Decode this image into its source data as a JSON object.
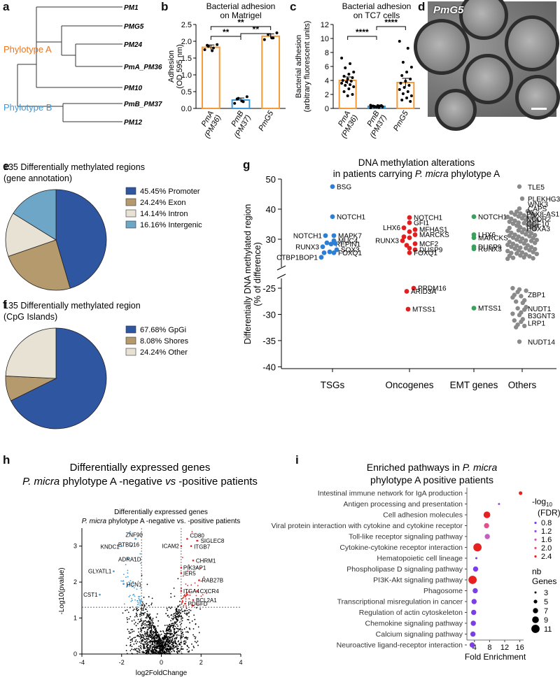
{
  "panel_labels": {
    "a": "a",
    "b": "b",
    "c": "c",
    "d": "d",
    "e": "e",
    "f": "f",
    "g": "g",
    "h": "h",
    "i": "i"
  },
  "phylo": {
    "leaves": [
      "PM1",
      "PMG5",
      "PM24",
      "PmA_PM36",
      "PM10",
      "PmB_PM37",
      "PM12"
    ],
    "clade_a": "Phylotype A",
    "clade_b": "Phylotype B",
    "color_a": "#e87722",
    "color_b": "#3a9ad9"
  },
  "micro": {
    "title": "PmG5"
  },
  "chart_data": [
    {
      "id": "b",
      "type": "bar",
      "title": "Bacterial adhesion\non Matrigel",
      "ylabel": "Adhesion\n(OD 595 nm)",
      "ylim": [
        0,
        2.5
      ],
      "yticks": [
        "0.0",
        "0.5",
        "1.0",
        "1.5",
        "2.0",
        "2.5"
      ],
      "categories": [
        "PmA\n(PM36)",
        "PmB\n(PM37)",
        "PmG5"
      ],
      "values": [
        1.82,
        0.25,
        2.15
      ],
      "errors": [
        0.07,
        0.06,
        0.07
      ],
      "points": [
        [
          1.75,
          1.8,
          1.85,
          1.9,
          1.72,
          1.88
        ],
        [
          0.15,
          0.2,
          0.3,
          0.35,
          0.22,
          0.28
        ],
        [
          2.05,
          2.1,
          2.2,
          2.25,
          2.1
        ]
      ],
      "bar_colors": [
        "#f39b3a",
        "#3a9ad9",
        "#f39b3a"
      ],
      "significance": [
        {
          "from": 0,
          "to": 1,
          "label": "**"
        },
        {
          "from": 0,
          "to": 2,
          "label": "**"
        },
        {
          "from": 1,
          "to": 2,
          "label": "**"
        }
      ]
    },
    {
      "id": "c",
      "type": "bar",
      "title": "Bacterial adhesion\non TC7 cells",
      "ylabel": "Bacterial adhesion\n(arbitrary fluorescent units)",
      "ylim": [
        0,
        12
      ],
      "yticks": [
        "0",
        "2",
        "4",
        "6",
        "8",
        "10",
        "12"
      ],
      "categories": [
        "PmA\n(PM36)",
        "PmB\n(PM37)",
        "PmG5"
      ],
      "values": [
        4.0,
        0.3,
        3.7
      ],
      "errors": [
        0.5,
        0.05,
        0.6
      ],
      "points": [
        [
          7.2,
          6.4,
          5.8,
          5.2,
          4.9,
          4.6,
          4.4,
          4.2,
          4.0,
          3.9,
          3.8,
          3.6,
          3.4,
          3.3,
          3.1,
          2.8,
          2.4,
          2.0,
          1.8
        ],
        [
          0.1,
          0.15,
          0.2,
          0.25,
          0.3,
          0.35,
          0.4,
          0.2,
          0.3,
          0.35,
          0.25,
          0.45,
          0.15,
          0.3,
          0.2,
          0.4
        ],
        [
          9.6,
          8.6,
          6.6,
          5.9,
          5.2,
          4.7,
          4.2,
          3.9,
          3.6,
          3.3,
          3.0,
          2.7,
          2.4,
          2.1,
          1.8,
          1.5,
          1.2,
          1.0
        ]
      ],
      "bar_colors": [
        "#f39b3a",
        "#3a9ad9",
        "#f39b3a"
      ],
      "significance": [
        {
          "from": 0,
          "to": 1,
          "label": "****"
        },
        {
          "from": 1,
          "to": 2,
          "label": "****"
        }
      ]
    },
    {
      "id": "e",
      "type": "pie",
      "title": "135 Differentially methylated regions\n(gene annotation)",
      "labels": [
        "Promoter",
        "Exon",
        "Intron",
        "Intergenic"
      ],
      "pct_labels": [
        "45.45%",
        "24.24%",
        "14.14%",
        "16.16%"
      ],
      "values": [
        45.45,
        24.24,
        14.14,
        16.16
      ],
      "colors": [
        "#2f56a0",
        "#b59a6e",
        "#e8e2d4",
        "#6ea6c8"
      ]
    },
    {
      "id": "f",
      "type": "pie",
      "title": "135 Differentially methylated region\n(CpG Islands)",
      "labels": [
        "GpGi",
        "Shores",
        "Other"
      ],
      "pct_labels": [
        "67.68%",
        "8.08%",
        "24.24%"
      ],
      "values": [
        67.68,
        8.08,
        24.24
      ],
      "colors": [
        "#2f56a0",
        "#b59a6e",
        "#e8e2d4"
      ]
    },
    {
      "id": "g",
      "type": "scatter",
      "title_line1": "DNA methylation alterations",
      "title_line2": "in patients carrying ",
      "title_italic": "P. micra",
      "title_line2_end": " phylotype A",
      "ylabel": "Differentially DNA methylated region\n(% of difference)",
      "yticks_top": [
        "50",
        "40",
        "30"
      ],
      "yticks_bottom": [
        "-25",
        "-30",
        "-35",
        "-40"
      ],
      "categories": [
        "TSGs",
        "Oncogenes",
        "EMT genes",
        "Others"
      ],
      "category_colors": [
        "#2d7fd4",
        "#e02020",
        "#3aa05e",
        "#8a8a8a"
      ],
      "points": [
        {
          "cat": 0,
          "x": 0.0,
          "y": 47.5,
          "label": "BSG"
        },
        {
          "cat": 0,
          "x": 0.0,
          "y": 37.5,
          "label": "NOTCH1"
        },
        {
          "cat": 0,
          "x": -0.25,
          "y": 31.2,
          "label": "NOTCH1"
        },
        {
          "cat": 0,
          "x": 0.05,
          "y": 31.2,
          "label": "MAPK7"
        },
        {
          "cat": 0,
          "x": 0.05,
          "y": 29.5,
          "label": "MUC4"
        },
        {
          "cat": 0,
          "x": -0.2,
          "y": 28.8,
          "label": ""
        },
        {
          "cat": 0,
          "x": -0.05,
          "y": 28.4,
          "label": "REPIN1"
        },
        {
          "cat": 0,
          "x": 0.1,
          "y": 28.6,
          "label": ""
        },
        {
          "cat": 0,
          "x": -0.35,
          "y": 27.5,
          "label": "RUNX3"
        },
        {
          "cat": 0,
          "x": 0.15,
          "y": 26.5,
          "label": "SOX3"
        },
        {
          "cat": 0,
          "x": -0.3,
          "y": 25.5,
          "label": ""
        },
        {
          "cat": 0,
          "x": -0.1,
          "y": 25.8,
          "label": ""
        },
        {
          "cat": 0,
          "x": 0.05,
          "y": 25.5,
          "label": "FOXQ1"
        },
        {
          "cat": 0,
          "x": -0.4,
          "y": 24.0,
          "label": "CTBP1BOP1"
        },
        {
          "cat": 1,
          "x": 0.0,
          "y": 37.2,
          "label": "NOTCH1"
        },
        {
          "cat": 1,
          "x": 0.0,
          "y": 35.5,
          "label": "GFI1"
        },
        {
          "cat": 1,
          "x": -0.2,
          "y": 33.8,
          "label": "LHX6"
        },
        {
          "cat": 1,
          "x": 0.2,
          "y": 33.2,
          "label": "MFHAS1"
        },
        {
          "cat": 1,
          "x": 0.0,
          "y": 32.5,
          "label": ""
        },
        {
          "cat": 1,
          "x": 0.2,
          "y": 31.5,
          "label": "MARCKS"
        },
        {
          "cat": 1,
          "x": -0.2,
          "y": 30.8,
          "label": ""
        },
        {
          "cat": 1,
          "x": 0.0,
          "y": 30.5,
          "label": ""
        },
        {
          "cat": 1,
          "x": -0.25,
          "y": 29.5,
          "label": "RUNX3"
        },
        {
          "cat": 1,
          "x": 0.2,
          "y": 28.5,
          "label": "MCF2"
        },
        {
          "cat": 1,
          "x": -0.1,
          "y": 28.0,
          "label": ""
        },
        {
          "cat": 1,
          "x": 0.0,
          "y": 27.0,
          "label": ""
        },
        {
          "cat": 1,
          "x": 0.2,
          "y": 26.5,
          "label": "DUSP9"
        },
        {
          "cat": 1,
          "x": 0.0,
          "y": 25.5,
          "label": "FOXQ1"
        },
        {
          "cat": 1,
          "x": 0.15,
          "y": -25.0,
          "label": "PRDM16"
        },
        {
          "cat": 1,
          "x": -0.1,
          "y": -25.6,
          "label": "ARID3A"
        },
        {
          "cat": 1,
          "x": -0.05,
          "y": -29.0,
          "label": "MTSS1"
        },
        {
          "cat": 2,
          "x": 0.0,
          "y": 37.5,
          "label": "NOTCH1"
        },
        {
          "cat": 2,
          "x": 0.0,
          "y": 31.5,
          "label": "LHX6"
        },
        {
          "cat": 2,
          "x": 0.0,
          "y": 30.5,
          "label": "MARCKS"
        },
        {
          "cat": 2,
          "x": 0.0,
          "y": 27.5,
          "label": "DUSP9"
        },
        {
          "cat": 2,
          "x": 0.0,
          "y": 26.8,
          "label": "RUNX3"
        },
        {
          "cat": 2,
          "x": 0.0,
          "y": -28.8,
          "label": "MTSS1"
        }
      ],
      "others_labels": [
        "TLE5",
        "PLEKHG3",
        "WNK3",
        "CAPS",
        "PAX8-AS1",
        "NCOR2",
        "GDF10",
        "HOXA3",
        "ZBP1",
        "NUDT1",
        "B3GNT3",
        "LRP1",
        "NUDT14"
      ],
      "others_label_y": [
        47.5,
        43.5,
        41.8,
        40.2,
        38.5,
        36.9,
        35.2,
        33.6,
        -26.2,
        -28.9,
        -30.2,
        -31.6,
        -35.2
      ]
    },
    {
      "id": "h",
      "type": "scatter",
      "title_line1": "Differentially expressed genes",
      "title_italic": "P. micra",
      "title_line2_end": " phylotype A -negative ",
      "title_vs": "vs",
      "title_line2_tail": " -positive patients",
      "inner_title_1": "Differentially expressed genes",
      "inner_title_2_italic": "P. micra",
      "inner_title_2_end": " phylotype A -negative vs. -positive patients",
      "xlabel": "log2FoldChange",
      "ylabel": "-Log10(pvalue)",
      "xlim": [
        -4,
        4
      ],
      "ylim": [
        0,
        3.5
      ],
      "xticks": [
        "-4",
        "-2",
        "0",
        "2",
        "4"
      ],
      "yticks": [
        "0",
        "1",
        "2",
        "3"
      ],
      "thresholds": {
        "fc": 1,
        "p": 1.3
      },
      "colors": {
        "down": "#3a9ad9",
        "up": "#e02020",
        "ns": "#000000"
      },
      "genes": [
        {
          "x": -1.3,
          "y": 3.2,
          "label": "ZNF90"
        },
        {
          "x": -1.5,
          "y": 3.0,
          "label": "BTBD16"
        },
        {
          "x": -2.0,
          "y": 3.0,
          "label": "KNDC1"
        },
        {
          "x": -1.7,
          "y": 2.65,
          "label": "ADRA1D"
        },
        {
          "x": -2.4,
          "y": 2.3,
          "label": "GLYATL1"
        },
        {
          "x": -1.9,
          "y": 1.95,
          "label": "HCN1"
        },
        {
          "x": -3.1,
          "y": 1.65,
          "label": "CST1"
        },
        {
          "x": 1.3,
          "y": 3.2,
          "label": "CD80"
        },
        {
          "x": 1.8,
          "y": 3.15,
          "label": "SIGLEC8"
        },
        {
          "x": 1.0,
          "y": 3.0,
          "label": "ICAM2"
        },
        {
          "x": 1.5,
          "y": 3.0,
          "label": "ITGB7"
        },
        {
          "x": 1.6,
          "y": 2.6,
          "label": "CHRM1"
        },
        {
          "x": 1.0,
          "y": 2.4,
          "label": "PIK3AP1"
        },
        {
          "x": 1.0,
          "y": 2.25,
          "label": "IER5"
        },
        {
          "x": 1.9,
          "y": 2.05,
          "label": "RAB27B"
        },
        {
          "x": 1.0,
          "y": 1.75,
          "label": "ITGA4"
        },
        {
          "x": 1.8,
          "y": 1.75,
          "label": "CXCR4"
        },
        {
          "x": 1.6,
          "y": 1.5,
          "label": "BCL2A1"
        },
        {
          "x": 1.2,
          "y": 1.4,
          "label": "PDGFD"
        }
      ]
    },
    {
      "id": "i",
      "type": "scatter",
      "title_line1_a": "Enriched pathways in ",
      "title_line1_italic": "P. micra",
      "title_line2": "phylotype A positive patients",
      "xlabel": "Fold Enrichment",
      "xticks": [
        "4",
        "8",
        "12",
        "16"
      ],
      "xlim": [
        2,
        17
      ],
      "pathways": [
        {
          "name": "Intestinal immune network for IgA production",
          "fe": 16.2,
          "fdr": 2.4,
          "genes": 5
        },
        {
          "name": "Antigen processing and presentation",
          "fe": 10.5,
          "fdr": 1.2,
          "genes": 3
        },
        {
          "name": "Cell adhesion molecules",
          "fe": 7.3,
          "fdr": 2.4,
          "genes": 9
        },
        {
          "name": "Viral protein interaction with cytokine and cytokine receptor",
          "fe": 7.2,
          "fdr": 1.8,
          "genes": 7
        },
        {
          "name": "Toll-like receptor signaling pathway",
          "fe": 7.4,
          "fdr": 1.6,
          "genes": 7
        },
        {
          "name": "Cytokine-cytokine receptor interaction",
          "fe": 4.8,
          "fdr": 2.4,
          "genes": 11
        },
        {
          "name": "Hematopoietic cell lineage",
          "fe": 4.5,
          "fdr": 0.7,
          "genes": 3
        },
        {
          "name": "Phospholipase D signaling pathway",
          "fe": 4.3,
          "fdr": 0.85,
          "genes": 7
        },
        {
          "name": "PI3K-Akt signaling pathway",
          "fe": 3.5,
          "fdr": 2.4,
          "genes": 11
        },
        {
          "name": "Phagosome",
          "fe": 4.2,
          "fdr": 0.8,
          "genes": 7
        },
        {
          "name": "Transcriptional misregulation in cancer",
          "fe": 3.9,
          "fdr": 0.8,
          "genes": 7
        },
        {
          "name": "Regulation of actin cytoskeleton",
          "fe": 3.8,
          "fdr": 0.8,
          "genes": 7
        },
        {
          "name": "Chemokine signaling pathway",
          "fe": 3.7,
          "fdr": 0.8,
          "genes": 7
        },
        {
          "name": "Calcium signaling pathway",
          "fe": 3.6,
          "fdr": 0.8,
          "genes": 7
        },
        {
          "name": "Neuroactive ligand-receptor interaction",
          "fe": 3.4,
          "fdr": 0.8,
          "genes": 7
        }
      ],
      "legend_fdr_title_a": "-log",
      "legend_fdr_title_sub": "10",
      "legend_fdr_title_b": "(FDR)",
      "legend_fdr_values": [
        "0.8",
        "1.2",
        "1.6",
        "2.0",
        "2.4"
      ],
      "legend_fdr_colors": [
        "#7b3fe4",
        "#9b4fe0",
        "#c45ec0",
        "#e0508a",
        "#e82020"
      ],
      "legend_size_title_a": "nb",
      "legend_size_title_b": "Genes",
      "legend_size_values": [
        "3",
        "5",
        "7",
        "9",
        "11"
      ]
    }
  ]
}
